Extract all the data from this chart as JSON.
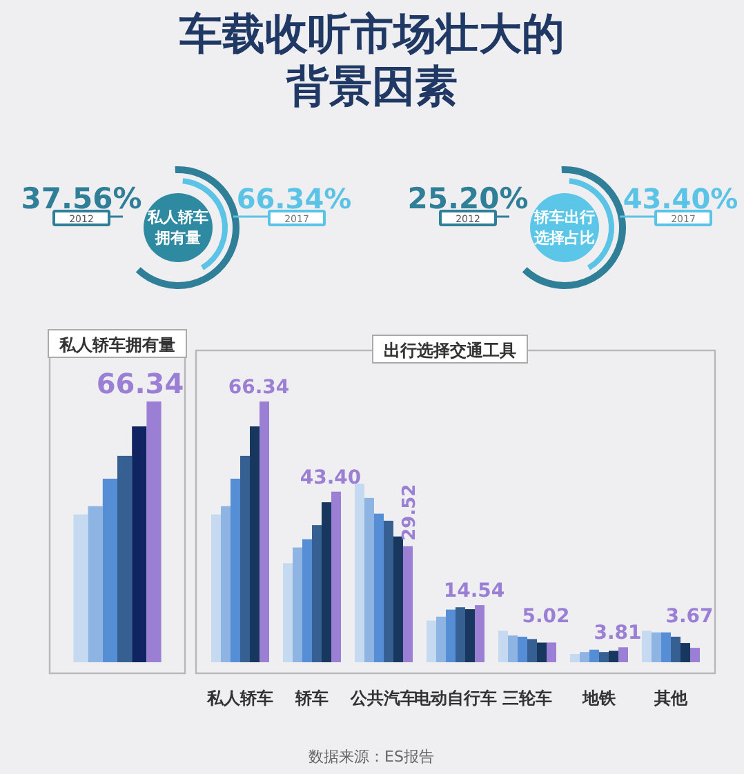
{
  "chart_data": [
    {
      "type": "other",
      "title": "车载收听市场壮大的背景因素"
    },
    {
      "type": "other",
      "title": "私人轿车拥有量",
      "annotations": [
        "37.56%",
        "2012",
        "66.34%",
        "2017"
      ]
    },
    {
      "type": "other",
      "title": "轿车出行选择占比",
      "annotations": [
        "25.20%",
        "2012",
        "43.40%",
        "2017"
      ]
    },
    {
      "type": "bar",
      "title": "私人轿车拥有量",
      "categories": [
        null
      ],
      "series": [
        {
          "color": "#c5d9f1",
          "values": [
            37.6
          ]
        },
        {
          "color": "#8db4e2",
          "values": [
            39.7
          ]
        },
        {
          "color": "#558ed5",
          "values": [
            46.7
          ]
        },
        {
          "color": "#376092",
          "values": [
            52.5
          ]
        },
        {
          "color": "#0f2460",
          "values": [
            60.0
          ]
        },
        {
          "color": "#9b7fd4",
          "values": [
            66.34
          ],
          "value_labels": [
            "66.34"
          ]
        }
      ]
    },
    {
      "type": "bar",
      "title": "出行选择交通工具",
      "categories": [
        "私人轿车",
        "轿车",
        "公共汽车",
        "电动自行车",
        "三轮车",
        "地铁",
        "其他"
      ],
      "series": [
        {
          "color": "#c5d9f1",
          "values": [
            37.6,
            25.2,
            45.4,
            10.6,
            8.0,
            2.1,
            8.0
          ]
        },
        {
          "color": "#8db4e2",
          "values": [
            39.7,
            29.2,
            41.8,
            11.6,
            6.8,
            2.6,
            7.6
          ]
        },
        {
          "color": "#558ed5",
          "values": [
            46.7,
            31.3,
            37.8,
            13.4,
            6.5,
            3.2,
            7.6
          ]
        },
        {
          "color": "#376092",
          "values": [
            52.5,
            34.9,
            36.0,
            14.0,
            5.9,
            2.6,
            6.5
          ]
        },
        {
          "color": "#17375e",
          "values": [
            60.0,
            40.7,
            32.0,
            13.5,
            5.0,
            2.9,
            4.9
          ]
        },
        {
          "color": "#9b7fd4",
          "values": [
            66.34,
            43.4,
            29.52,
            14.54,
            5.02,
            3.81,
            3.67
          ],
          "value_labels": [
            "66.34",
            "43.40",
            "29.52",
            "14.54",
            "5.02",
            "3.81",
            "3.67"
          ]
        }
      ],
      "annotations": [
        "数据来源：ES报告"
      ]
    }
  ]
}
